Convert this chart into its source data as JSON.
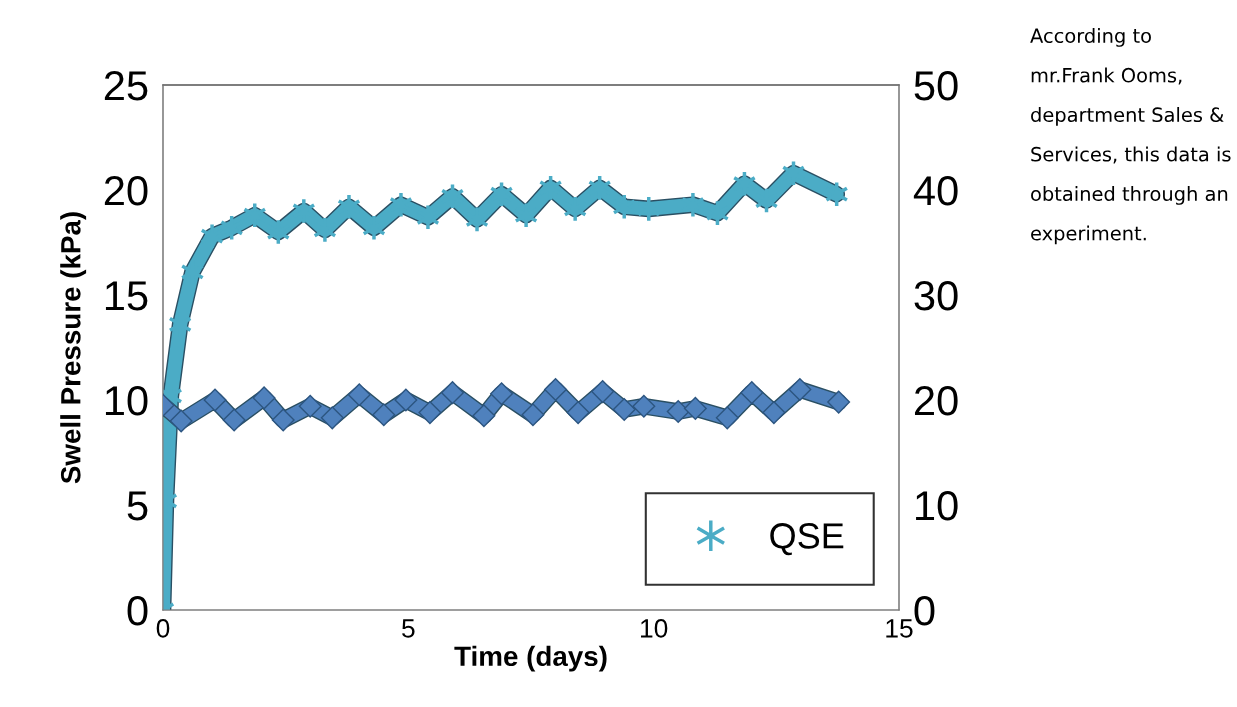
{
  "chart_data": {
    "type": "line",
    "xlabel": "Time (days)",
    "ylabel": "Swell Pressure (kPa)",
    "xlim": [
      0,
      15
    ],
    "xticks": [
      0,
      5,
      10,
      15
    ],
    "ylim": [
      0,
      25
    ],
    "yticks": [
      0,
      5,
      10,
      15,
      20,
      25
    ],
    "y2lim": [
      0,
      50
    ],
    "y2ticks": [
      0,
      10,
      20,
      30,
      40,
      50
    ],
    "legend": "bottom right",
    "line_style": "solid",
    "annotations": [
      "According to mr.Frank Ooms, department Sales & Services, this data is obtained through an experiment."
    ],
    "series": [
      {
        "name": "QSE",
        "color": "#4bacc6",
        "marker": "cross",
        "x": [
          0,
          0.06,
          0.16,
          0.35,
          0.6,
          1.0,
          1.4,
          1.87,
          2.35,
          2.87,
          3.3,
          3.79,
          4.3,
          4.85,
          5.4,
          5.9,
          6.4,
          6.9,
          7.4,
          7.9,
          8.4,
          8.9,
          9.4,
          9.9,
          10.8,
          11.3,
          11.85,
          12.3,
          12.85,
          13.73
        ],
        "values": [
          0,
          5.2,
          10.2,
          13.6,
          16.1,
          17.8,
          18.2,
          18.8,
          18.0,
          19.0,
          18.1,
          19.2,
          18.2,
          19.3,
          18.7,
          19.7,
          18.6,
          19.8,
          18.8,
          20.1,
          19.1,
          20.1,
          19.2,
          19.1,
          19.3,
          18.9,
          20.3,
          19.5,
          20.8,
          19.8
        ]
      },
      {
        "color": "#4f81bd",
        "marker": "diamond",
        "axis": "y2",
        "x": [
          0,
          0.37,
          1.06,
          1.45,
          2.06,
          2.45,
          3.0,
          3.45,
          4.0,
          4.5,
          4.95,
          5.44,
          5.9,
          6.54,
          6.9,
          7.54,
          8.0,
          8.46,
          8.96,
          9.4,
          9.8,
          10.5,
          10.85,
          11.5,
          12.0,
          12.45,
          12.98,
          13.77
        ],
        "values": [
          19.5,
          18.0,
          20.0,
          18.1,
          20.2,
          18.1,
          19.4,
          18.3,
          20.5,
          18.6,
          20.0,
          18.8,
          20.7,
          18.5,
          20.6,
          18.6,
          21.0,
          18.8,
          20.8,
          19.1,
          19.4,
          18.9,
          19.2,
          18.3,
          20.7,
          18.8,
          21.0,
          19.8
        ]
      }
    ]
  }
}
